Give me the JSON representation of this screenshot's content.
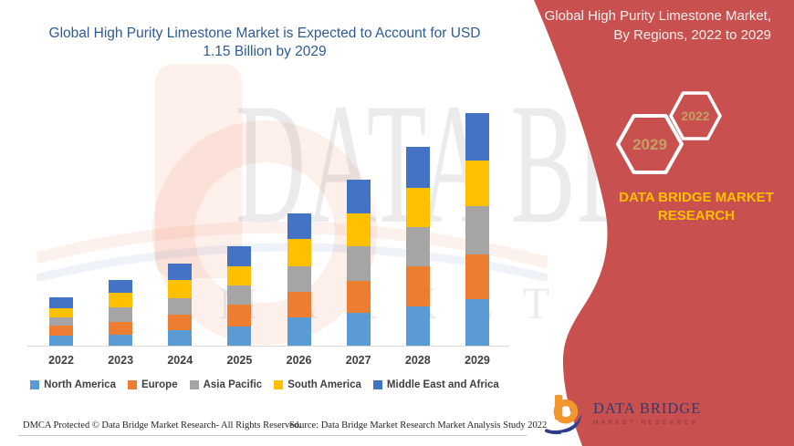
{
  "page": {
    "background": "#FFFFFF",
    "accent_red": "#C85150",
    "title_color": "#2F5B94"
  },
  "main": {
    "title": "Global High Purity Limestone Market is Expected to Account for USD 1.15 Billion by 2029"
  },
  "chart_data": {
    "type": "bar",
    "stacked": true,
    "title": "Global High Purity Limestone Market, By Regions, 2022 to 2029",
    "categories": [
      "2022",
      "2023",
      "2024",
      "2025",
      "2026",
      "2027",
      "2028",
      "2029"
    ],
    "unit": "USD Billion",
    "values_estimated": true,
    "series": [
      {
        "name": "North America",
        "color": "#5B9BD5",
        "values": [
          0.05,
          0.054,
          0.077,
          0.095,
          0.14,
          0.162,
          0.194,
          0.23
        ]
      },
      {
        "name": "Europe",
        "color": "#ED7D31",
        "values": [
          0.05,
          0.063,
          0.077,
          0.108,
          0.126,
          0.158,
          0.198,
          0.221
        ]
      },
      {
        "name": "Asia Pacific",
        "color": "#A5A5A5",
        "values": [
          0.041,
          0.072,
          0.081,
          0.095,
          0.126,
          0.171,
          0.194,
          0.239
        ]
      },
      {
        "name": "South America",
        "color": "#FFC000",
        "values": [
          0.045,
          0.072,
          0.09,
          0.095,
          0.135,
          0.162,
          0.194,
          0.226
        ]
      },
      {
        "name": "Middle East and Africa",
        "color": "#4472C4",
        "values": [
          0.054,
          0.063,
          0.081,
          0.099,
          0.126,
          0.167,
          0.203,
          0.235
        ]
      }
    ],
    "totals": [
      0.24,
      0.32,
      0.41,
      0.49,
      0.65,
      0.82,
      0.98,
      1.15
    ],
    "ylim": [
      0,
      1.25
    ],
    "gridlines": false,
    "y_axis_visible": false,
    "legend_position": "bottom"
  },
  "footer": {
    "dmca": "DMCA Protected © Data Bridge Market Research- All Rights Reserved.",
    "source": "Source: Data Bridge Market Research Market Analysis Study 2022"
  },
  "side_panel": {
    "heading": "Global High Purity Limestone Market, By Regions, 2022 to 2029",
    "hexagon_labels": [
      "2029",
      "2022"
    ],
    "brand_text": "DATA BRIDGE MARKET RESEARCH",
    "brand_color": "#FFC000"
  },
  "logo": {
    "name": "DATA BRIDGE",
    "tagline": "MARKET RESEARCH"
  },
  "watermark": {
    "big_text": "DATA BRIDGE",
    "spaced_text": "MARKET RESEARCH"
  }
}
